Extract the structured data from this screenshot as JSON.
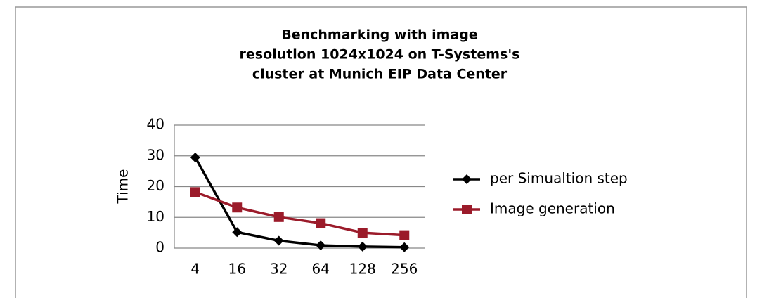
{
  "chart_data": {
    "type": "line",
    "title": [
      "Benchmarking with image",
      "resolution 1024x1024 on T-Systems's",
      "cluster at Munich EIP Data Center"
    ],
    "y_label": "Time",
    "categories": [
      "4",
      "16",
      "32",
      "64",
      "128",
      "256"
    ],
    "series": [
      {
        "name": "per Simualtion step",
        "color": "#000000",
        "marker": "diamond",
        "values": [
          29.5,
          5.2,
          2.4,
          0.9,
          0.5,
          0.3
        ]
      },
      {
        "name": "Image generation",
        "color": "#9b1b2a",
        "marker": "square",
        "values": [
          18.2,
          13.2,
          10.1,
          8.1,
          5.0,
          4.2
        ]
      }
    ],
    "ylim": [
      0,
      40
    ],
    "yticks": [
      0,
      10,
      20,
      30,
      40
    ],
    "grid": true,
    "legend": "right"
  }
}
